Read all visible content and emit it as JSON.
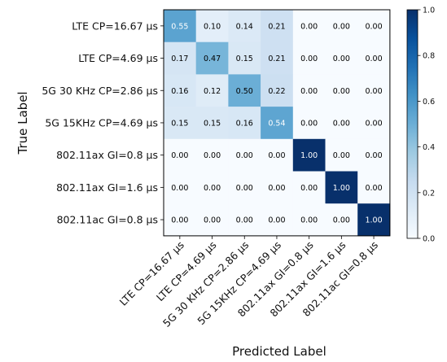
{
  "chart_data": {
    "type": "heatmap",
    "title": "",
    "xlabel": "Predicted Label",
    "ylabel": "True Label",
    "x_categories": [
      "LTE CP=16.67 µs",
      "LTE CP=4.69 µs",
      "5G 30 KHz CP=2.86 µs",
      "5G 15KHz CP=4.69 µs",
      "802.11ax GI=0.8 µs",
      "802.11ax GI=1.6 µs",
      "802.11ac GI=0.8 µs"
    ],
    "y_categories": [
      "LTE CP=16.67 µs",
      "LTE CP=4.69 µs",
      "5G 30 KHz CP=2.86 µs",
      "5G 15KHz CP=4.69 µs",
      "802.11ax GI=0.8 µs",
      "802.11ax GI=1.6 µs",
      "802.11ac GI=0.8 µs"
    ],
    "values": [
      [
        0.55,
        0.1,
        0.14,
        0.21,
        0.0,
        0.0,
        0.0
      ],
      [
        0.17,
        0.47,
        0.15,
        0.21,
        0.0,
        0.0,
        0.0
      ],
      [
        0.16,
        0.12,
        0.5,
        0.22,
        0.0,
        0.0,
        0.0
      ],
      [
        0.15,
        0.15,
        0.16,
        0.54,
        0.0,
        0.0,
        0.0
      ],
      [
        0.0,
        0.0,
        0.0,
        0.0,
        1.0,
        0.0,
        0.0
      ],
      [
        0.0,
        0.0,
        0.0,
        0.0,
        0.0,
        1.0,
        0.0
      ],
      [
        0.0,
        0.0,
        0.0,
        0.0,
        0.0,
        0.0,
        1.0
      ]
    ],
    "colorbar": {
      "range": [
        0.0,
        1.0
      ],
      "ticks": [
        "0.0",
        "0.2",
        "0.4",
        "0.6",
        "0.8",
        "1.0"
      ],
      "colormap": "Blues"
    }
  }
}
